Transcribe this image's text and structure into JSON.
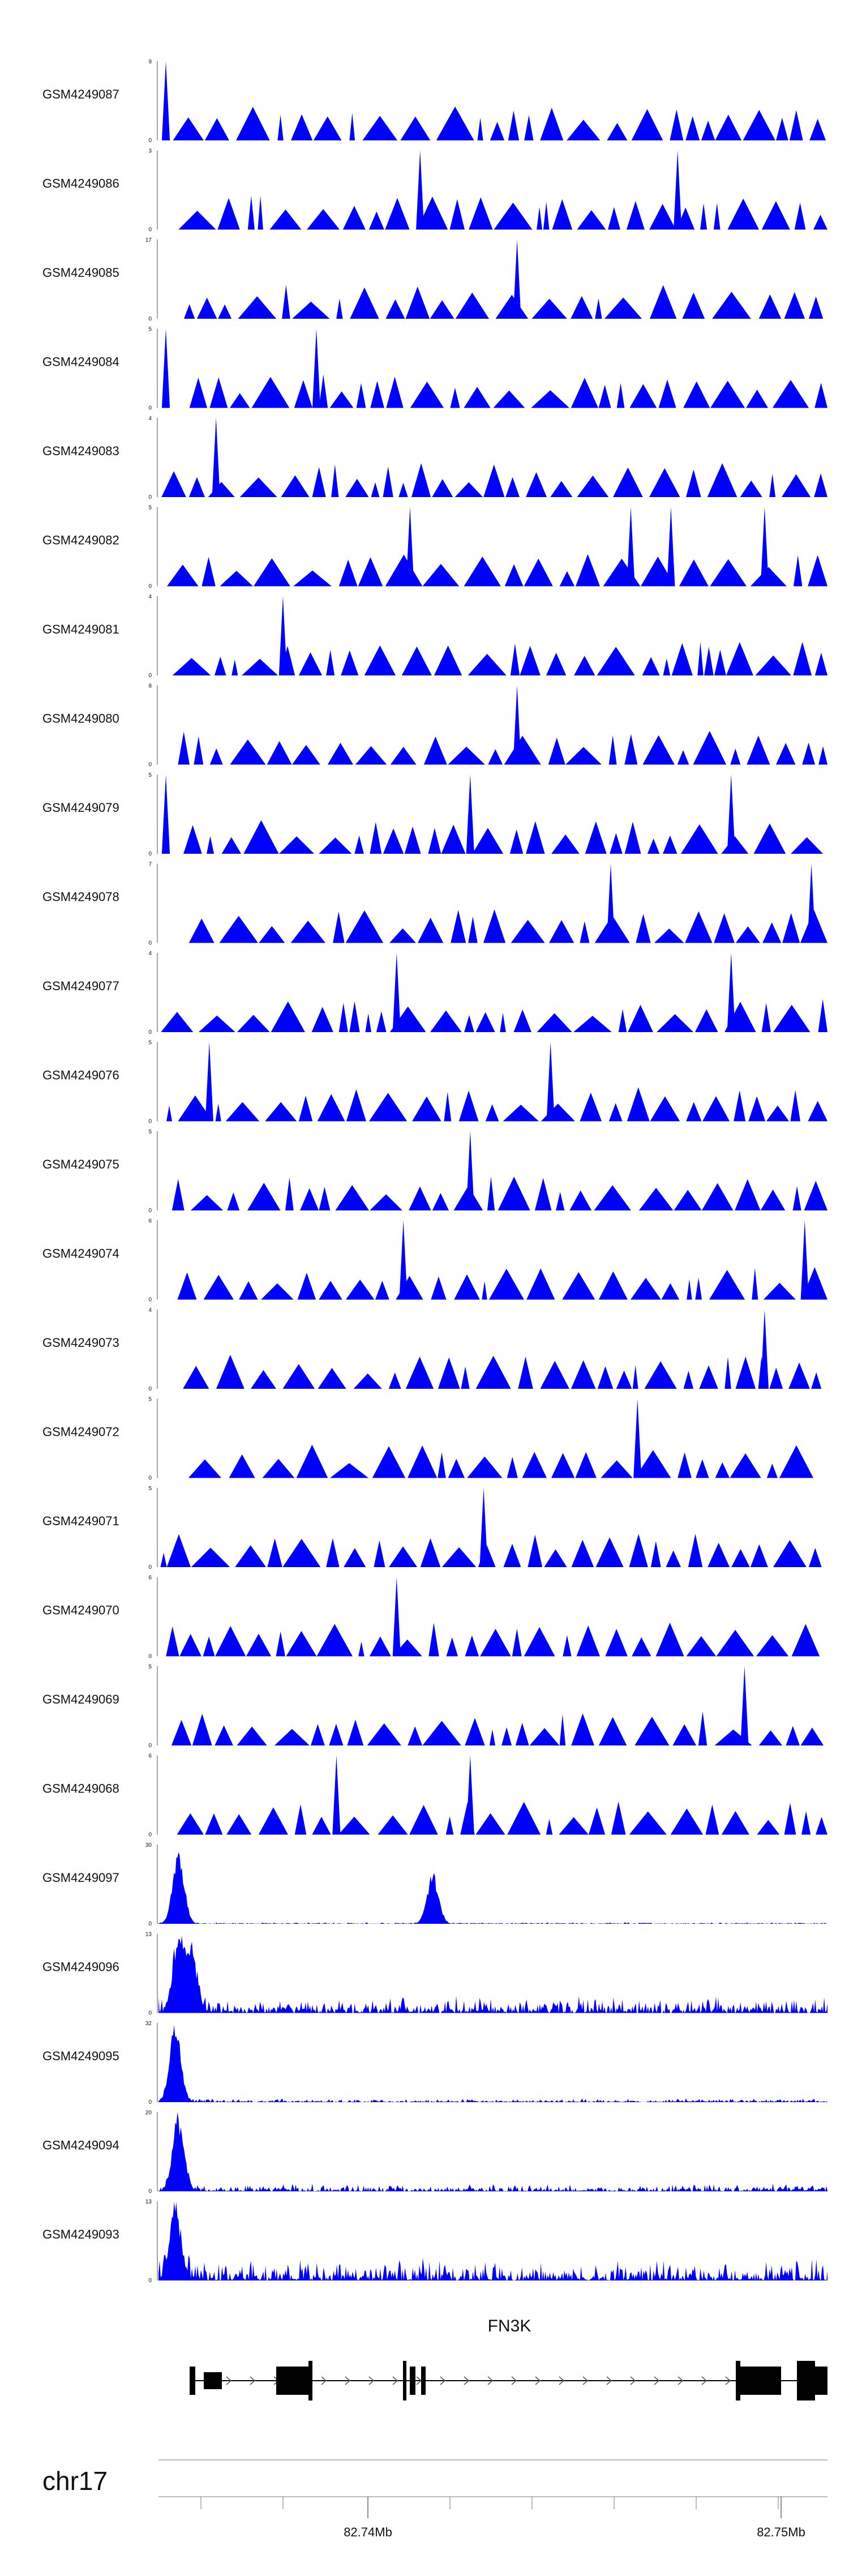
{
  "chart_data": {
    "type": "area",
    "color": "#0000ff",
    "chromosome": "chr17",
    "axis": {
      "ticks": [
        {
          "pos_mb": 82.74,
          "label": "82.74Mb"
        },
        {
          "pos_mb": 82.75,
          "label": "82.75Mb"
        }
      ]
    },
    "gene": {
      "name": "FN3K",
      "strand": "+"
    },
    "tracks": [
      {
        "name": "GSM4249087",
        "ymax": "9",
        "ymin": "0",
        "style": "spiky",
        "seed": 87,
        "peaks": [
          [
            0.005,
            9
          ]
        ]
      },
      {
        "name": "GSM4249086",
        "ymax": "3",
        "ymin": "0",
        "style": "spiky",
        "seed": 86,
        "peaks": [
          [
            0.385,
            3
          ],
          [
            0.77,
            3
          ]
        ]
      },
      {
        "name": "GSM4249085",
        "ymax": "17",
        "ymin": "0",
        "style": "spiky",
        "seed": 85,
        "peaks": [
          [
            0.53,
            17
          ]
        ]
      },
      {
        "name": "GSM4249084",
        "ymax": "5",
        "ymin": "0",
        "style": "spiky",
        "seed": 84,
        "peaks": [
          [
            0.005,
            5
          ],
          [
            0.23,
            5
          ]
        ]
      },
      {
        "name": "GSM4249083",
        "ymax": "4",
        "ymin": "0",
        "style": "spiky",
        "seed": 83,
        "peaks": [
          [
            0.08,
            4
          ]
        ]
      },
      {
        "name": "GSM4249082",
        "ymax": "5",
        "ymin": "0",
        "style": "spiky",
        "seed": 82,
        "peaks": [
          [
            0.37,
            5
          ],
          [
            0.7,
            5
          ],
          [
            0.76,
            5
          ],
          [
            0.9,
            5
          ]
        ]
      },
      {
        "name": "GSM4249081",
        "ymax": "4",
        "ymin": "0",
        "style": "spiky",
        "seed": 81,
        "peaks": [
          [
            0.18,
            4
          ]
        ]
      },
      {
        "name": "GSM4249080",
        "ymax": "8",
        "ymin": "0",
        "style": "spiky",
        "seed": 80,
        "peaks": [
          [
            0.53,
            8
          ]
        ]
      },
      {
        "name": "GSM4249079",
        "ymax": "5",
        "ymin": "0",
        "style": "spiky",
        "seed": 79,
        "peaks": [
          [
            0.005,
            5
          ],
          [
            0.46,
            5
          ],
          [
            0.85,
            5
          ]
        ]
      },
      {
        "name": "GSM4249078",
        "ymax": "7",
        "ymin": "0",
        "style": "spiky",
        "seed": 78,
        "peaks": [
          [
            0.67,
            7
          ],
          [
            0.97,
            7
          ]
        ]
      },
      {
        "name": "GSM4249077",
        "ymax": "4",
        "ymin": "0",
        "style": "spiky",
        "seed": 77,
        "peaks": [
          [
            0.35,
            4
          ],
          [
            0.85,
            4
          ]
        ]
      },
      {
        "name": "GSM4249076",
        "ymax": "5",
        "ymin": "0",
        "style": "spiky",
        "seed": 76,
        "peaks": [
          [
            0.07,
            5
          ],
          [
            0.58,
            5
          ]
        ]
      },
      {
        "name": "GSM4249075",
        "ymax": "5",
        "ymin": "0",
        "style": "spiky",
        "seed": 75,
        "peaks": [
          [
            0.46,
            5
          ]
        ]
      },
      {
        "name": "GSM4249074",
        "ymax": "6",
        "ymin": "0",
        "style": "spiky",
        "seed": 74,
        "peaks": [
          [
            0.36,
            6
          ],
          [
            0.96,
            6
          ]
        ]
      },
      {
        "name": "GSM4249073",
        "ymax": "4",
        "ymin": "0",
        "style": "spiky",
        "seed": 73,
        "peaks": [
          [
            0.9,
            4
          ]
        ]
      },
      {
        "name": "GSM4249072",
        "ymax": "5",
        "ymin": "0",
        "style": "spiky",
        "seed": 72,
        "peaks": [
          [
            0.71,
            5
          ]
        ]
      },
      {
        "name": "GSM4249071",
        "ymax": "5",
        "ymin": "0",
        "style": "spiky",
        "seed": 71,
        "peaks": [
          [
            0.48,
            5
          ]
        ]
      },
      {
        "name": "GSM4249070",
        "ymax": "6",
        "ymin": "0",
        "style": "spiky",
        "seed": 70,
        "peaks": [
          [
            0.35,
            6
          ]
        ]
      },
      {
        "name": "GSM4249069",
        "ymax": "5",
        "ymin": "0",
        "style": "spiky",
        "seed": 69,
        "peaks": [
          [
            0.87,
            5
          ]
        ]
      },
      {
        "name": "GSM4249068",
        "ymax": "6",
        "ymin": "0",
        "style": "spiky",
        "seed": 68,
        "peaks": [
          [
            0.26,
            6
          ],
          [
            0.46,
            6
          ]
        ]
      },
      {
        "name": "GSM4249097",
        "ymax": "30",
        "ymin": "0",
        "style": "dense",
        "seed": 97,
        "peaks": [
          [
            0.03,
            30
          ],
          [
            0.41,
            20
          ]
        ],
        "noise": 0.02
      },
      {
        "name": "GSM4249096",
        "ymax": "13",
        "ymin": "0",
        "style": "dense",
        "seed": 96,
        "peaks": [
          [
            0.03,
            13
          ],
          [
            0.05,
            10
          ]
        ],
        "noise": 0.22
      },
      {
        "name": "GSM4249095",
        "ymax": "32",
        "ymin": "0",
        "style": "dense",
        "seed": 95,
        "peaks": [
          [
            0.025,
            32
          ]
        ],
        "noise": 0.05
      },
      {
        "name": "GSM4249094",
        "ymax": "20",
        "ymin": "0",
        "style": "dense",
        "seed": 94,
        "peaks": [
          [
            0.03,
            20
          ]
        ],
        "noise": 0.1
      },
      {
        "name": "GSM4249093",
        "ymax": "13",
        "ymin": "0",
        "style": "dense",
        "seed": 93,
        "peaks": [
          [
            0.025,
            13
          ]
        ],
        "noise": 0.3
      }
    ]
  }
}
